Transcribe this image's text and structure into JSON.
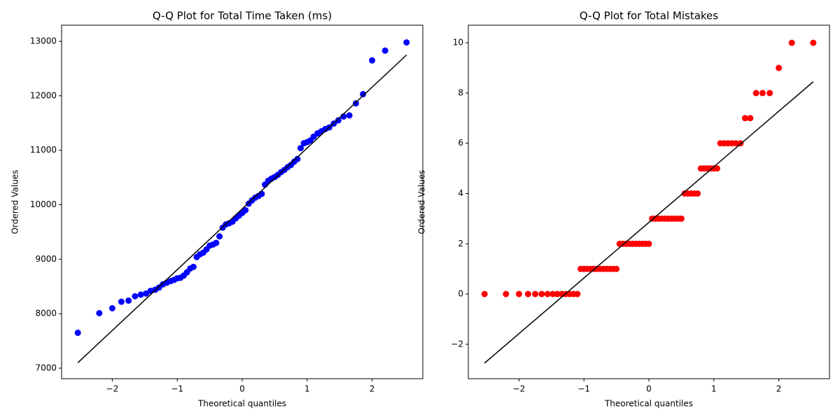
{
  "chart_data": [
    {
      "type": "scatter",
      "title": "Q-Q Plot for Total Time Taken (ms)",
      "xlabel": "Theoretical quantiles",
      "ylabel": "Ordered Values",
      "xlim": [
        -2.78,
        2.78
      ],
      "ylim": [
        6807,
        13296
      ],
      "xticks": [
        {
          "value": -2,
          "label": "−2"
        },
        {
          "value": -1,
          "label": "−1"
        },
        0,
        1,
        2
      ],
      "yticks": [
        7000,
        8000,
        9000,
        10000,
        11000,
        12000,
        13000
      ],
      "points": {
        "color": "#0000ff",
        "x": [
          -2.53,
          -2.2,
          -2.0,
          -1.86,
          -1.75,
          -1.65,
          -1.56,
          -1.48,
          -1.41,
          -1.34,
          -1.28,
          -1.22,
          -1.16,
          -1.1,
          -1.05,
          -1.0,
          -0.95,
          -0.9,
          -0.85,
          -0.8,
          -0.75,
          -0.7,
          -0.65,
          -0.6,
          -0.55,
          -0.5,
          -0.45,
          -0.4,
          -0.35,
          -0.3,
          -0.25,
          -0.2,
          -0.15,
          -0.1,
          -0.05,
          0,
          0.05,
          0.1,
          0.15,
          0.2,
          0.25,
          0.3,
          0.35,
          0.4,
          0.45,
          0.5,
          0.55,
          0.6,
          0.65,
          0.7,
          0.75,
          0.8,
          0.85,
          0.9,
          0.95,
          1.0,
          1.05,
          1.1,
          1.16,
          1.22,
          1.28,
          1.34,
          1.41,
          1.48,
          1.56,
          1.65,
          1.75,
          1.86,
          2.0,
          2.2,
          2.53
        ],
        "values": [
          7650,
          8010,
          8100,
          8220,
          8240,
          8320,
          8350,
          8370,
          8420,
          8440,
          8480,
          8540,
          8570,
          8600,
          8620,
          8650,
          8660,
          8700,
          8760,
          8830,
          8860,
          9040,
          9090,
          9120,
          9180,
          9250,
          9270,
          9300,
          9420,
          9580,
          9640,
          9660,
          9690,
          9750,
          9800,
          9850,
          9900,
          10020,
          10080,
          10130,
          10160,
          10200,
          10370,
          10440,
          10480,
          10510,
          10550,
          10600,
          10640,
          10690,
          10730,
          10790,
          10840,
          11040,
          11130,
          11150,
          11180,
          11250,
          11310,
          11350,
          11390,
          11420,
          11490,
          11550,
          11620,
          11640,
          11860,
          12030,
          12650,
          12830,
          12980
        ]
      },
      "fit_line": {
        "color": "#000000",
        "x": [
          -2.53,
          2.53
        ],
        "values": [
          7100,
          12750
        ]
      }
    },
    {
      "type": "scatter",
      "title": "Q-Q Plot for Total Mistakes",
      "xlabel": "Theoretical quantiles",
      "ylabel": "Ordered Values",
      "xlim": [
        -2.78,
        2.78
      ],
      "ylim": [
        -3.37,
        10.7
      ],
      "xticks": [
        {
          "value": -2,
          "label": "−2"
        },
        {
          "value": -1,
          "label": "−1"
        },
        0,
        1,
        2
      ],
      "yticks": [
        {
          "value": -2,
          "label": "−2"
        },
        0,
        2,
        4,
        6,
        8,
        10
      ],
      "points": {
        "color": "#ff0000",
        "x": [
          -2.53,
          -2.2,
          -2.0,
          -1.86,
          -1.75,
          -1.65,
          -1.56,
          -1.48,
          -1.41,
          -1.34,
          -1.28,
          -1.22,
          -1.16,
          -1.1,
          -1.05,
          -1.0,
          -0.95,
          -0.9,
          -0.85,
          -0.8,
          -0.75,
          -0.7,
          -0.65,
          -0.6,
          -0.55,
          -0.5,
          -0.45,
          -0.4,
          -0.35,
          -0.3,
          -0.25,
          -0.2,
          -0.15,
          -0.1,
          -0.05,
          0,
          0.05,
          0.1,
          0.15,
          0.2,
          0.25,
          0.3,
          0.35,
          0.4,
          0.45,
          0.5,
          0.55,
          0.6,
          0.65,
          0.7,
          0.75,
          0.8,
          0.85,
          0.9,
          0.95,
          1.0,
          1.05,
          1.1,
          1.16,
          1.22,
          1.28,
          1.34,
          1.41,
          1.48,
          1.56,
          1.65,
          1.75,
          1.86,
          2.0,
          2.2,
          2.53
        ],
        "values": [
          0,
          0,
          0,
          0,
          0,
          0,
          0,
          0,
          0,
          0,
          0,
          0,
          0,
          0,
          1,
          1,
          1,
          1,
          1,
          1,
          1,
          1,
          1,
          1,
          1,
          1,
          2,
          2,
          2,
          2,
          2,
          2,
          2,
          2,
          2,
          2,
          3,
          3,
          3,
          3,
          3,
          3,
          3,
          3,
          3,
          3,
          4,
          4,
          4,
          4,
          4,
          5,
          5,
          5,
          5,
          5,
          5,
          6,
          6,
          6,
          6,
          6,
          6,
          7,
          7,
          8,
          8,
          8,
          9,
          10,
          10
        ]
      },
      "fit_line": {
        "color": "#000000",
        "x": [
          -2.53,
          2.53
        ],
        "values": [
          -2.75,
          8.45
        ]
      }
    }
  ]
}
